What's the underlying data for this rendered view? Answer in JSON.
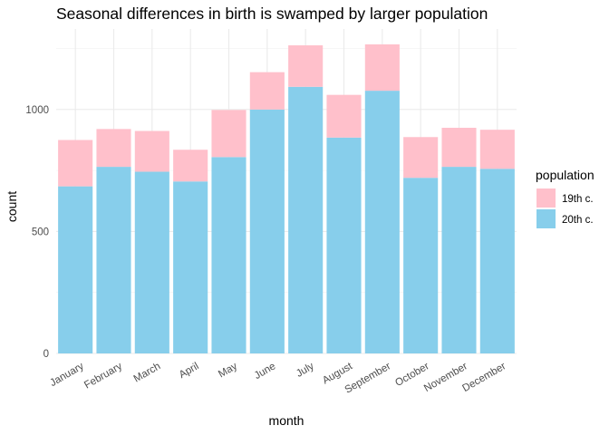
{
  "chart_data": {
    "type": "bar",
    "stacked": true,
    "title": "Seasonal differences in birth is swamped by larger population",
    "xlabel": "month",
    "ylabel": "count",
    "categories": [
      "January",
      "February",
      "March",
      "April",
      "May",
      "June",
      "July",
      "August",
      "September",
      "October",
      "November",
      "December"
    ],
    "series": [
      {
        "name": "20th c.",
        "color": "#87CEEB",
        "values": [
          685,
          765,
          745,
          705,
          805,
          1000,
          1093,
          885,
          1077,
          720,
          765,
          757
        ]
      },
      {
        "name": "19th c.",
        "color": "#FFC0CB",
        "values": [
          190,
          155,
          167,
          130,
          193,
          153,
          170,
          175,
          190,
          167,
          160,
          160
        ]
      }
    ],
    "ylim": [
      0,
      1330
    ],
    "yticks": [
      0,
      500,
      1000
    ],
    "ytick_labels": [
      "0",
      "500",
      "1000"
    ],
    "legend": {
      "title": "population",
      "placement": "right",
      "entries": [
        "19th c.",
        "20th c."
      ]
    },
    "grid": true,
    "xtick_rotation": 30
  }
}
